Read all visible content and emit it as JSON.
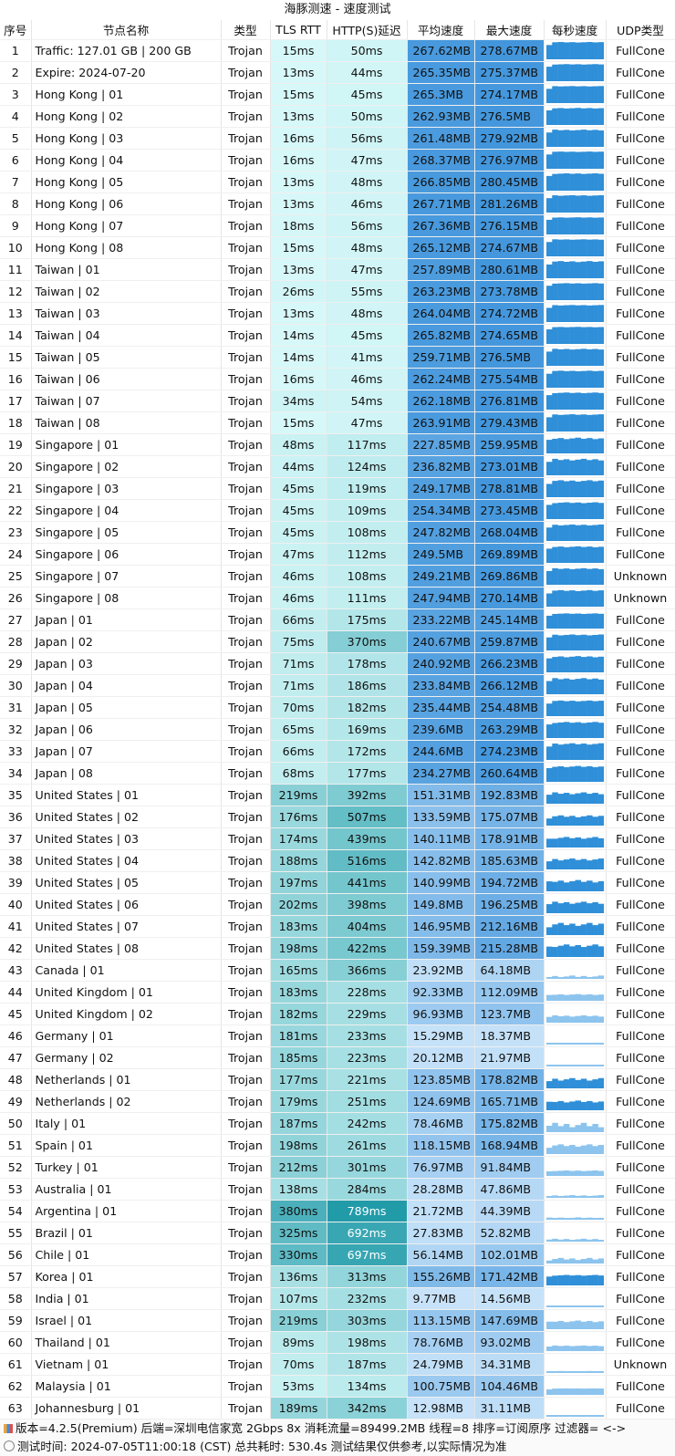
{
  "title": "海豚测速 - 速度测试",
  "headers": [
    "序号",
    "节点名称",
    "类型",
    "TLS RTT",
    "HTTP(S)延迟",
    "平均速度",
    "最大速度",
    "每秒速度",
    "UDP类型"
  ],
  "colors": {
    "avg_speed_bg": "#3d93db",
    "max_speed_bg": "#3d93db",
    "rtt_scale": [
      "#dcfbfb",
      "#1f9aa8"
    ]
  },
  "rows": [
    {
      "id": "1",
      "name": "Traffic: 127.01 GB | 200 GB",
      "type": "Trojan",
      "tls": "15ms",
      "http": "50ms",
      "avg": "267.62MB",
      "max": "278.67MB",
      "udp": "FullCone"
    },
    {
      "id": "2",
      "name": "Expire: 2024-07-20",
      "type": "Trojan",
      "tls": "13ms",
      "http": "44ms",
      "avg": "265.35MB",
      "max": "275.37MB",
      "udp": "FullCone"
    },
    {
      "id": "3",
      "name": "Hong Kong | 01",
      "type": "Trojan",
      "tls": "15ms",
      "http": "45ms",
      "avg": "265.3MB",
      "max": "274.17MB",
      "udp": "FullCone"
    },
    {
      "id": "4",
      "name": "Hong Kong | 02",
      "type": "Trojan",
      "tls": "13ms",
      "http": "50ms",
      "avg": "262.93MB",
      "max": "276.5MB",
      "udp": "FullCone"
    },
    {
      "id": "5",
      "name": "Hong Kong | 03",
      "type": "Trojan",
      "tls": "16ms",
      "http": "56ms",
      "avg": "261.48MB",
      "max": "279.92MB",
      "udp": "FullCone"
    },
    {
      "id": "6",
      "name": "Hong Kong | 04",
      "type": "Trojan",
      "tls": "16ms",
      "http": "47ms",
      "avg": "268.37MB",
      "max": "276.97MB",
      "udp": "FullCone"
    },
    {
      "id": "7",
      "name": "Hong Kong | 05",
      "type": "Trojan",
      "tls": "13ms",
      "http": "48ms",
      "avg": "266.85MB",
      "max": "280.45MB",
      "udp": "FullCone"
    },
    {
      "id": "8",
      "name": "Hong Kong | 06",
      "type": "Trojan",
      "tls": "13ms",
      "http": "46ms",
      "avg": "267.71MB",
      "max": "281.26MB",
      "udp": "FullCone"
    },
    {
      "id": "9",
      "name": "Hong Kong | 07",
      "type": "Trojan",
      "tls": "18ms",
      "http": "56ms",
      "avg": "267.36MB",
      "max": "276.15MB",
      "udp": "FullCone"
    },
    {
      "id": "10",
      "name": "Hong Kong | 08",
      "type": "Trojan",
      "tls": "15ms",
      "http": "48ms",
      "avg": "265.12MB",
      "max": "274.67MB",
      "udp": "FullCone"
    },
    {
      "id": "11",
      "name": "Taiwan | 01",
      "type": "Trojan",
      "tls": "13ms",
      "http": "47ms",
      "avg": "257.89MB",
      "max": "280.61MB",
      "udp": "FullCone"
    },
    {
      "id": "12",
      "name": "Taiwan | 02",
      "type": "Trojan",
      "tls": "26ms",
      "http": "55ms",
      "avg": "263.23MB",
      "max": "273.78MB",
      "udp": "FullCone"
    },
    {
      "id": "13",
      "name": "Taiwan | 03",
      "type": "Trojan",
      "tls": "13ms",
      "http": "48ms",
      "avg": "264.04MB",
      "max": "274.72MB",
      "udp": "FullCone"
    },
    {
      "id": "14",
      "name": "Taiwan | 04",
      "type": "Trojan",
      "tls": "14ms",
      "http": "45ms",
      "avg": "265.82MB",
      "max": "274.65MB",
      "udp": "FullCone"
    },
    {
      "id": "15",
      "name": "Taiwan | 05",
      "type": "Trojan",
      "tls": "14ms",
      "http": "41ms",
      "avg": "259.71MB",
      "max": "276.5MB",
      "udp": "FullCone"
    },
    {
      "id": "16",
      "name": "Taiwan | 06",
      "type": "Trojan",
      "tls": "16ms",
      "http": "46ms",
      "avg": "262.24MB",
      "max": "275.54MB",
      "udp": "FullCone"
    },
    {
      "id": "17",
      "name": "Taiwan | 07",
      "type": "Trojan",
      "tls": "34ms",
      "http": "54ms",
      "avg": "262.18MB",
      "max": "276.81MB",
      "udp": "FullCone"
    },
    {
      "id": "18",
      "name": "Taiwan | 08",
      "type": "Trojan",
      "tls": "15ms",
      "http": "47ms",
      "avg": "263.91MB",
      "max": "279.43MB",
      "udp": "FullCone"
    },
    {
      "id": "19",
      "name": "Singapore | 01",
      "type": "Trojan",
      "tls": "48ms",
      "http": "117ms",
      "avg": "227.85MB",
      "max": "259.95MB",
      "udp": "FullCone"
    },
    {
      "id": "20",
      "name": "Singapore | 02",
      "type": "Trojan",
      "tls": "44ms",
      "http": "124ms",
      "avg": "236.82MB",
      "max": "273.01MB",
      "udp": "FullCone"
    },
    {
      "id": "21",
      "name": "Singapore | 03",
      "type": "Trojan",
      "tls": "45ms",
      "http": "119ms",
      "avg": "249.17MB",
      "max": "278.81MB",
      "udp": "FullCone"
    },
    {
      "id": "22",
      "name": "Singapore | 04",
      "type": "Trojan",
      "tls": "45ms",
      "http": "109ms",
      "avg": "254.34MB",
      "max": "273.45MB",
      "udp": "FullCone"
    },
    {
      "id": "23",
      "name": "Singapore | 05",
      "type": "Trojan",
      "tls": "45ms",
      "http": "108ms",
      "avg": "247.82MB",
      "max": "268.04MB",
      "udp": "FullCone"
    },
    {
      "id": "24",
      "name": "Singapore | 06",
      "type": "Trojan",
      "tls": "47ms",
      "http": "112ms",
      "avg": "249.5MB",
      "max": "269.89MB",
      "udp": "FullCone"
    },
    {
      "id": "25",
      "name": "Singapore | 07",
      "type": "Trojan",
      "tls": "46ms",
      "http": "108ms",
      "avg": "249.21MB",
      "max": "269.86MB",
      "udp": "Unknown"
    },
    {
      "id": "26",
      "name": "Singapore | 08",
      "type": "Trojan",
      "tls": "46ms",
      "http": "111ms",
      "avg": "247.94MB",
      "max": "270.14MB",
      "udp": "Unknown"
    },
    {
      "id": "27",
      "name": "Japan | 01",
      "type": "Trojan",
      "tls": "66ms",
      "http": "175ms",
      "avg": "233.22MB",
      "max": "245.14MB",
      "udp": "FullCone"
    },
    {
      "id": "28",
      "name": "Japan | 02",
      "type": "Trojan",
      "tls": "75ms",
      "http": "370ms",
      "avg": "240.67MB",
      "max": "259.87MB",
      "udp": "FullCone"
    },
    {
      "id": "29",
      "name": "Japan | 03",
      "type": "Trojan",
      "tls": "71ms",
      "http": "178ms",
      "avg": "240.92MB",
      "max": "266.23MB",
      "udp": "FullCone"
    },
    {
      "id": "30",
      "name": "Japan | 04",
      "type": "Trojan",
      "tls": "71ms",
      "http": "186ms",
      "avg": "233.84MB",
      "max": "266.12MB",
      "udp": "FullCone"
    },
    {
      "id": "31",
      "name": "Japan | 05",
      "type": "Trojan",
      "tls": "70ms",
      "http": "182ms",
      "avg": "235.44MB",
      "max": "254.48MB",
      "udp": "FullCone"
    },
    {
      "id": "32",
      "name": "Japan | 06",
      "type": "Trojan",
      "tls": "65ms",
      "http": "169ms",
      "avg": "239.6MB",
      "max": "263.29MB",
      "udp": "FullCone"
    },
    {
      "id": "33",
      "name": "Japan | 07",
      "type": "Trojan",
      "tls": "66ms",
      "http": "172ms",
      "avg": "244.6MB",
      "max": "274.23MB",
      "udp": "FullCone"
    },
    {
      "id": "34",
      "name": "Japan | 08",
      "type": "Trojan",
      "tls": "68ms",
      "http": "177ms",
      "avg": "234.27MB",
      "max": "260.64MB",
      "udp": "FullCone"
    },
    {
      "id": "35",
      "name": "United States | 01",
      "type": "Trojan",
      "tls": "219ms",
      "http": "392ms",
      "avg": "151.31MB",
      "max": "192.83MB",
      "udp": "FullCone"
    },
    {
      "id": "36",
      "name": "United States | 02",
      "type": "Trojan",
      "tls": "176ms",
      "http": "507ms",
      "avg": "133.59MB",
      "max": "175.07MB",
      "udp": "FullCone"
    },
    {
      "id": "37",
      "name": "United States | 03",
      "type": "Trojan",
      "tls": "174ms",
      "http": "439ms",
      "avg": "140.11MB",
      "max": "178.91MB",
      "udp": "FullCone"
    },
    {
      "id": "38",
      "name": "United States | 04",
      "type": "Trojan",
      "tls": "188ms",
      "http": "516ms",
      "avg": "142.82MB",
      "max": "185.63MB",
      "udp": "FullCone"
    },
    {
      "id": "39",
      "name": "United States | 05",
      "type": "Trojan",
      "tls": "197ms",
      "http": "441ms",
      "avg": "140.99MB",
      "max": "194.72MB",
      "udp": "FullCone"
    },
    {
      "id": "40",
      "name": "United States | 06",
      "type": "Trojan",
      "tls": "202ms",
      "http": "398ms",
      "avg": "149.8MB",
      "max": "196.25MB",
      "udp": "FullCone"
    },
    {
      "id": "41",
      "name": "United States | 07",
      "type": "Trojan",
      "tls": "183ms",
      "http": "404ms",
      "avg": "146.95MB",
      "max": "212.16MB",
      "udp": "FullCone"
    },
    {
      "id": "42",
      "name": "United States | 08",
      "type": "Trojan",
      "tls": "198ms",
      "http": "422ms",
      "avg": "159.39MB",
      "max": "215.28MB",
      "udp": "FullCone"
    },
    {
      "id": "43",
      "name": "Canada | 01",
      "type": "Trojan",
      "tls": "165ms",
      "http": "366ms",
      "avg": "23.92MB",
      "max": "64.18MB",
      "udp": "FullCone"
    },
    {
      "id": "44",
      "name": "United Kingdom | 01",
      "type": "Trojan",
      "tls": "183ms",
      "http": "228ms",
      "avg": "92.33MB",
      "max": "112.09MB",
      "udp": "FullCone"
    },
    {
      "id": "45",
      "name": "United Kingdom | 02",
      "type": "Trojan",
      "tls": "182ms",
      "http": "229ms",
      "avg": "96.93MB",
      "max": "123.7MB",
      "udp": "FullCone"
    },
    {
      "id": "46",
      "name": "Germany | 01",
      "type": "Trojan",
      "tls": "181ms",
      "http": "233ms",
      "avg": "15.29MB",
      "max": "18.37MB",
      "udp": "FullCone"
    },
    {
      "id": "47",
      "name": "Germany | 02",
      "type": "Trojan",
      "tls": "185ms",
      "http": "223ms",
      "avg": "20.12MB",
      "max": "21.97MB",
      "udp": "FullCone"
    },
    {
      "id": "48",
      "name": "Netherlands | 01",
      "type": "Trojan",
      "tls": "177ms",
      "http": "221ms",
      "avg": "123.85MB",
      "max": "178.82MB",
      "udp": "FullCone"
    },
    {
      "id": "49",
      "name": "Netherlands | 02",
      "type": "Trojan",
      "tls": "179ms",
      "http": "251ms",
      "avg": "124.69MB",
      "max": "165.71MB",
      "udp": "FullCone"
    },
    {
      "id": "50",
      "name": "Italy | 01",
      "type": "Trojan",
      "tls": "187ms",
      "http": "242ms",
      "avg": "78.46MB",
      "max": "175.82MB",
      "udp": "FullCone"
    },
    {
      "id": "51",
      "name": "Spain | 01",
      "type": "Trojan",
      "tls": "198ms",
      "http": "261ms",
      "avg": "118.15MB",
      "max": "168.94MB",
      "udp": "FullCone"
    },
    {
      "id": "52",
      "name": "Turkey | 01",
      "type": "Trojan",
      "tls": "212ms",
      "http": "301ms",
      "avg": "76.97MB",
      "max": "91.84MB",
      "udp": "FullCone"
    },
    {
      "id": "53",
      "name": "Australia | 01",
      "type": "Trojan",
      "tls": "138ms",
      "http": "284ms",
      "avg": "28.28MB",
      "max": "47.86MB",
      "udp": "FullCone"
    },
    {
      "id": "54",
      "name": "Argentina | 01",
      "type": "Trojan",
      "tls": "380ms",
      "http": "789ms",
      "avg": "21.72MB",
      "max": "44.39MB",
      "udp": "FullCone"
    },
    {
      "id": "55",
      "name": "Brazil | 01",
      "type": "Trojan",
      "tls": "325ms",
      "http": "692ms",
      "avg": "27.83MB",
      "max": "52.82MB",
      "udp": "FullCone"
    },
    {
      "id": "56",
      "name": "Chile | 01",
      "type": "Trojan",
      "tls": "330ms",
      "http": "697ms",
      "avg": "56.14MB",
      "max": "102.01MB",
      "udp": "FullCone"
    },
    {
      "id": "57",
      "name": "Korea | 01",
      "type": "Trojan",
      "tls": "136ms",
      "http": "313ms",
      "avg": "155.26MB",
      "max": "171.42MB",
      "udp": "FullCone"
    },
    {
      "id": "58",
      "name": "India | 01",
      "type": "Trojan",
      "tls": "107ms",
      "http": "232ms",
      "avg": "9.77MB",
      "max": "14.56MB",
      "udp": "FullCone"
    },
    {
      "id": "59",
      "name": "Israel | 01",
      "type": "Trojan",
      "tls": "219ms",
      "http": "303ms",
      "avg": "113.15MB",
      "max": "147.69MB",
      "udp": "FullCone"
    },
    {
      "id": "60",
      "name": "Thailand | 01",
      "type": "Trojan",
      "tls": "89ms",
      "http": "198ms",
      "avg": "78.76MB",
      "max": "93.02MB",
      "udp": "FullCone"
    },
    {
      "id": "61",
      "name": "Vietnam | 01",
      "type": "Trojan",
      "tls": "70ms",
      "http": "187ms",
      "avg": "24.79MB",
      "max": "34.31MB",
      "udp": "Unknown"
    },
    {
      "id": "62",
      "name": "Malaysia | 01",
      "type": "Trojan",
      "tls": "53ms",
      "http": "134ms",
      "avg": "100.75MB",
      "max": "104.46MB",
      "udp": "FullCone"
    },
    {
      "id": "63",
      "name": "Johannesburg | 01",
      "type": "Trojan",
      "tls": "189ms",
      "http": "342ms",
      "avg": "12.98MB",
      "max": "31.11MB",
      "udp": "FullCone"
    }
  ],
  "footer": {
    "line1": "版本=4.2.5(Premium)  后端=深圳电信家宽 2Gbps 8x  消耗流量=89499.2MB  线程=8  排序=订阅原序  过滤器= <->",
    "line2": "测试时间: 2024-07-05T11:00:18 (CST) 总共耗时: 530.4s 测试结果仅供参考,以实际情况为准",
    "line1_icon": "bar-chart-icon",
    "line2_icon": "clock-icon"
  }
}
